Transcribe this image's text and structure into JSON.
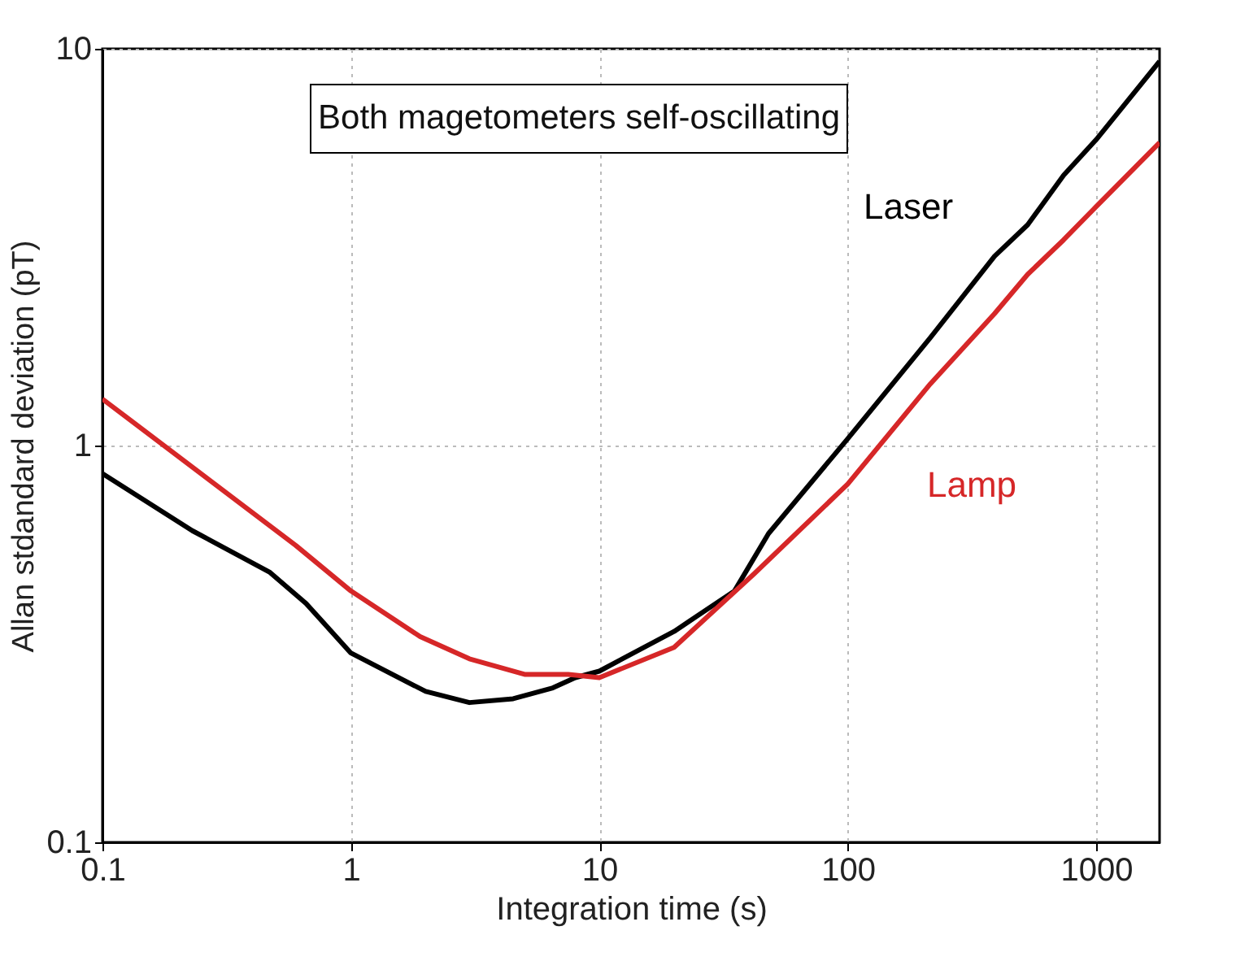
{
  "chart_data": {
    "type": "line",
    "xlabel": "Integration time (s)",
    "ylabel": "Allan stdandard deviation (pT)",
    "annotations": [
      "Both magetometers self-oscillating"
    ],
    "log": "xy",
    "grid": true,
    "line_style": "solid",
    "marker": "none",
    "xlim": [
      0.1,
      1800
    ],
    "ylim": [
      0.1,
      10
    ],
    "xticks": [
      0.1,
      1,
      10,
      100,
      1000
    ],
    "yticks": [
      0.1,
      1,
      10
    ],
    "series": [
      {
        "name": "Laser",
        "color": "#000000",
        "x": [
          0.1,
          0.23,
          0.47,
          0.66,
          1,
          2,
          3,
          4.5,
          6.5,
          8,
          10,
          20,
          35,
          48,
          100,
          215,
          390,
          530,
          740,
          1000,
          1800
        ],
        "values": [
          0.85,
          0.61,
          0.48,
          0.4,
          0.3,
          0.24,
          0.225,
          0.23,
          0.245,
          0.26,
          0.27,
          0.34,
          0.43,
          0.6,
          1.04,
          1.87,
          3.0,
          3.6,
          4.8,
          5.9,
          9.3
        ]
      },
      {
        "name": "Lamp",
        "color": "#d62728",
        "x": [
          0.1,
          0.6,
          1,
          1.9,
          3,
          5,
          7.5,
          10,
          20,
          42,
          100,
          215,
          390,
          530,
          740,
          1000,
          1800
        ],
        "values": [
          1.31,
          0.56,
          0.43,
          0.33,
          0.29,
          0.265,
          0.265,
          0.26,
          0.31,
          0.475,
          0.8,
          1.43,
          2.15,
          2.7,
          3.3,
          4.0,
          5.8
        ]
      }
    ]
  }
}
